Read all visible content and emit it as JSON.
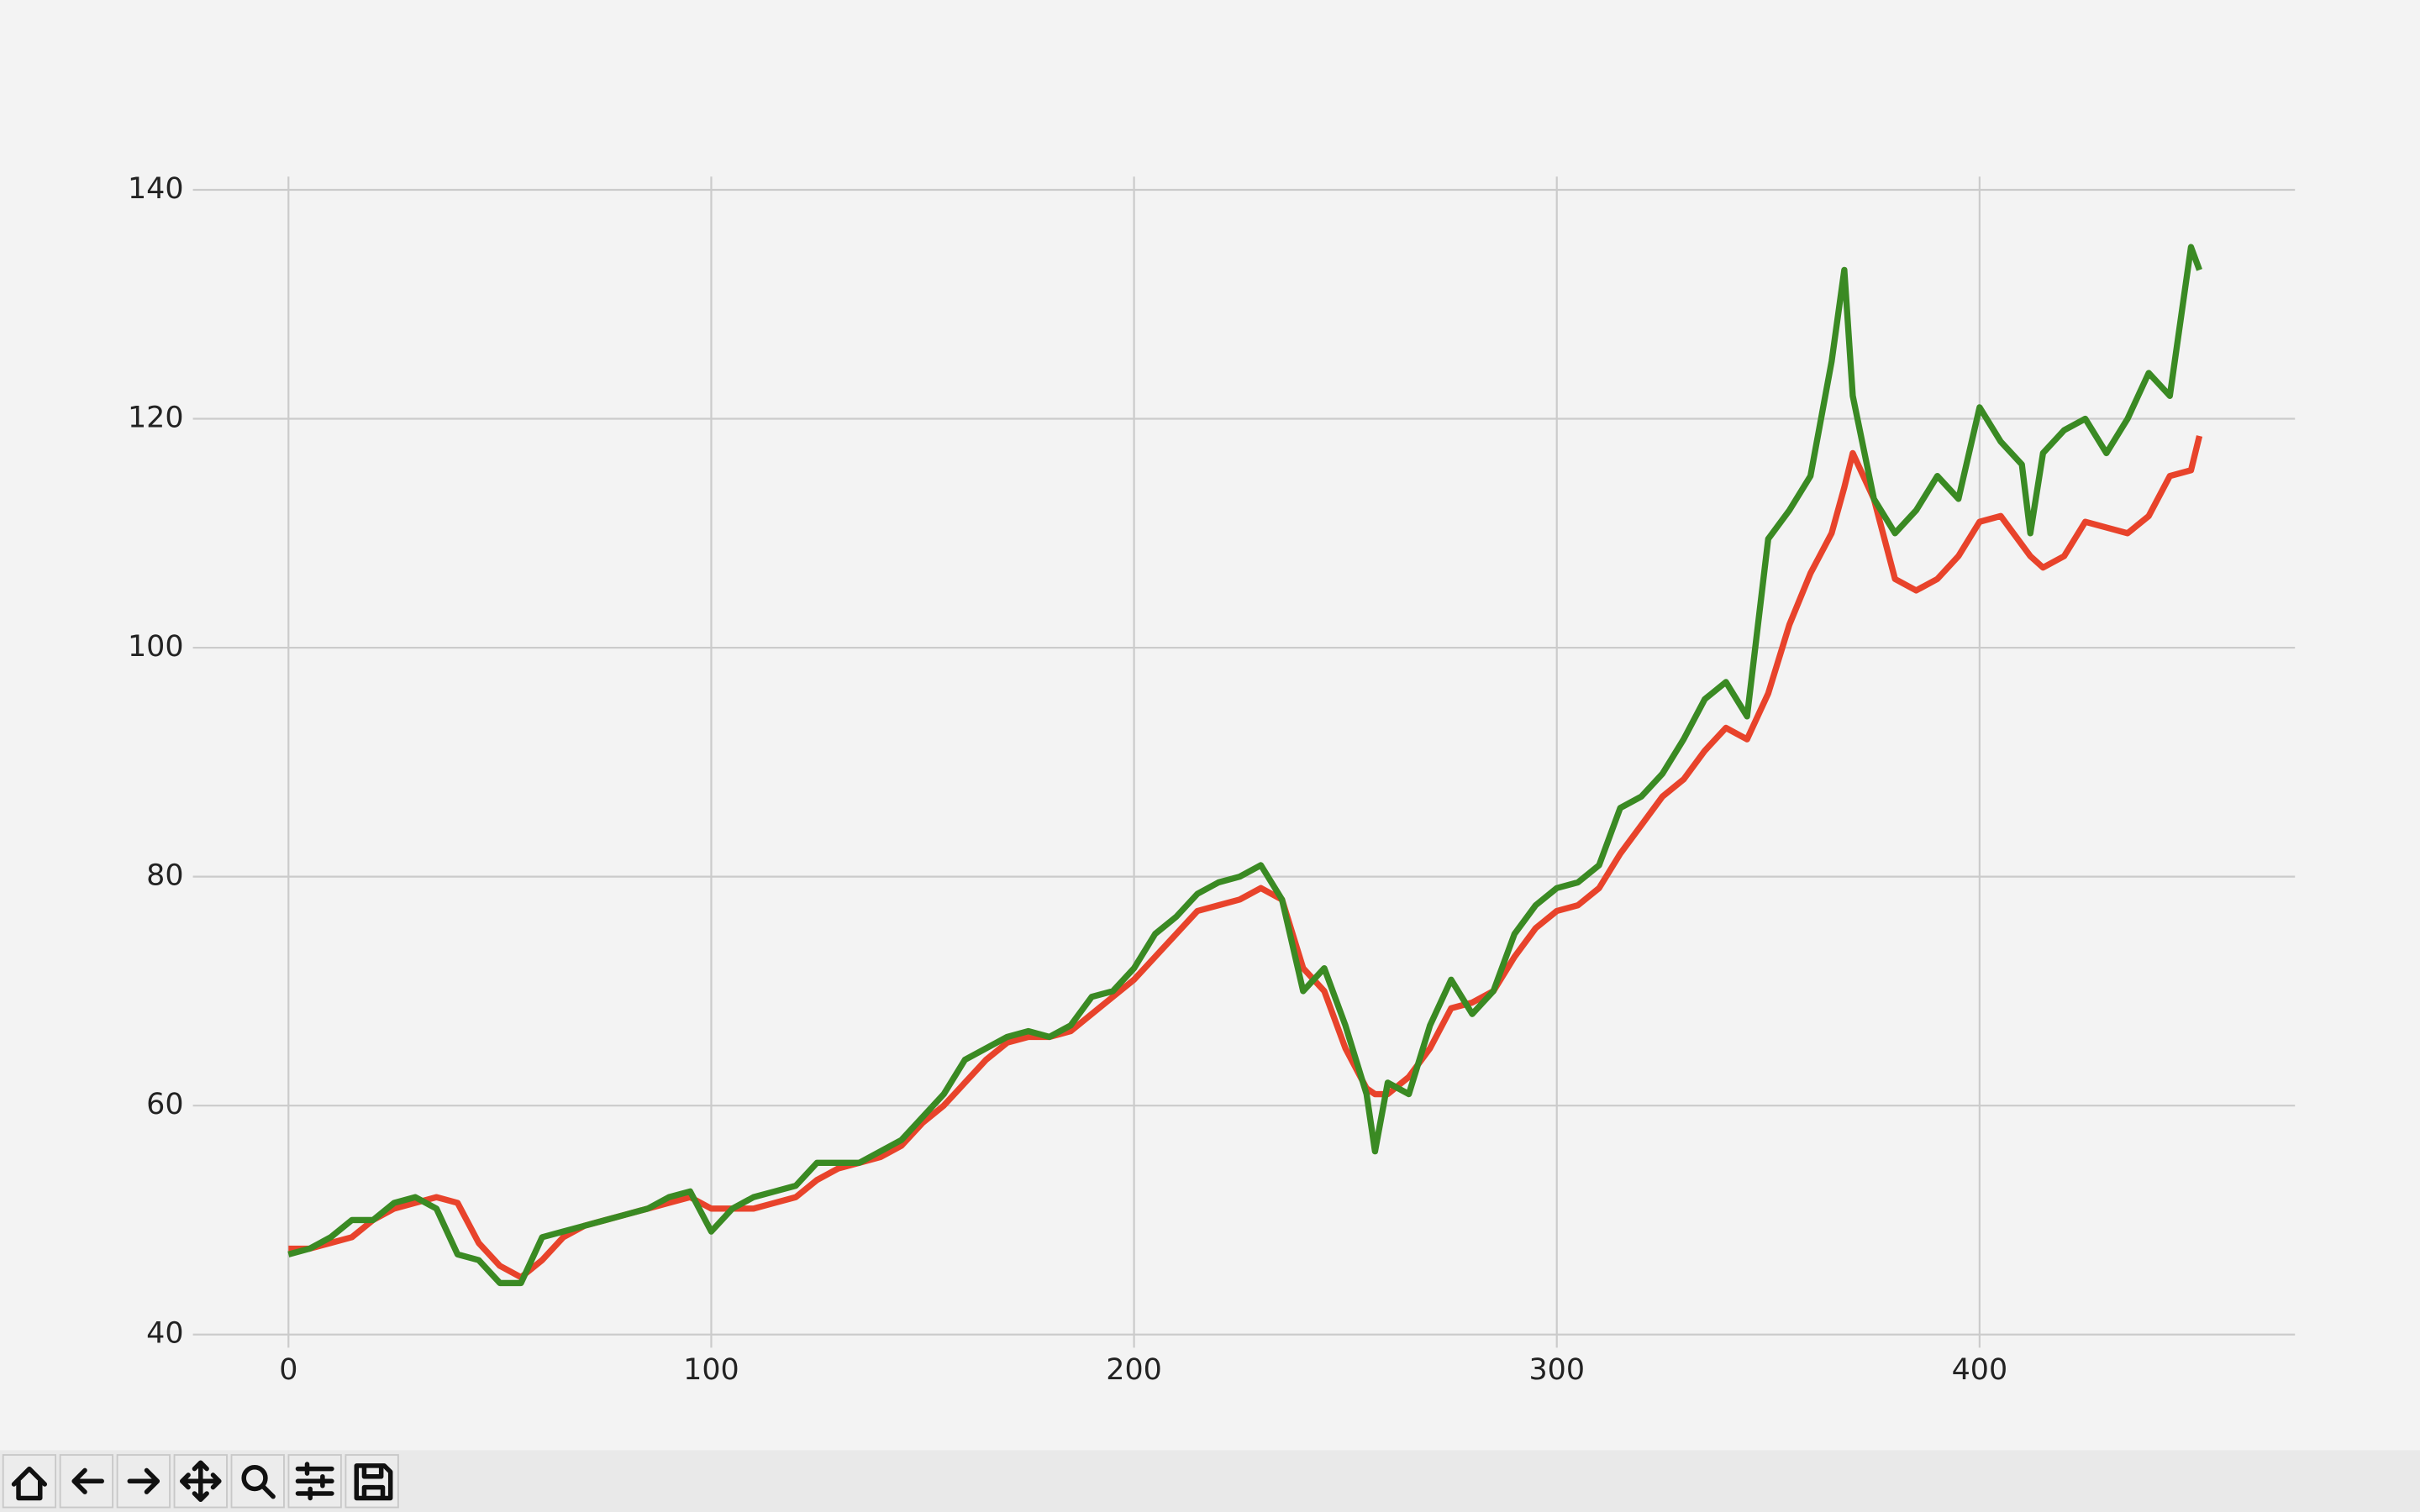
{
  "chart_data": {
    "type": "line",
    "x": [
      0,
      5,
      10,
      15,
      20,
      25,
      30,
      35,
      40,
      45,
      50,
      55,
      60,
      65,
      70,
      75,
      80,
      85,
      90,
      95,
      100,
      105,
      110,
      115,
      120,
      125,
      130,
      135,
      140,
      145,
      150,
      155,
      160,
      165,
      170,
      175,
      180,
      185,
      190,
      195,
      200,
      205,
      210,
      215,
      220,
      225,
      230,
      235,
      240,
      245,
      250,
      255,
      257,
      260,
      265,
      270,
      275,
      280,
      285,
      290,
      295,
      300,
      305,
      310,
      315,
      320,
      325,
      330,
      335,
      340,
      345,
      350,
      355,
      360,
      365,
      368,
      370,
      375,
      380,
      385,
      390,
      395,
      400,
      405,
      410,
      412,
      415,
      420,
      425,
      430,
      435,
      440,
      445,
      450,
      452
    ],
    "series": [
      {
        "color": "#e8432b",
        "values": [
          47.5,
          47.5,
          48,
          48.5,
          50,
          51,
          51.5,
          52,
          51.5,
          48,
          46,
          45,
          46.5,
          48.5,
          49.5,
          50,
          50.5,
          51,
          51.5,
          52,
          51,
          51,
          51,
          51.5,
          52,
          53.5,
          54.5,
          55,
          55.5,
          56.5,
          58.5,
          60,
          62,
          64,
          65.5,
          66,
          66,
          66.5,
          68,
          69.5,
          71,
          73,
          75,
          77,
          77.5,
          78,
          79,
          78,
          72,
          70,
          65,
          61.5,
          61,
          61,
          62.5,
          65,
          68.5,
          69,
          70,
          73,
          75.5,
          77,
          77.5,
          79,
          82,
          84.5,
          87,
          88.5,
          91,
          93,
          92,
          96,
          102,
          106.5,
          110,
          114,
          117,
          113,
          106,
          105,
          106,
          108,
          111,
          111.5,
          109,
          108,
          107,
          108,
          111,
          110.5,
          110,
          111.5,
          115,
          115.5,
          118.5
        ]
      },
      {
        "color": "#3a8a23",
        "values": [
          47,
          47.5,
          48.5,
          50,
          50,
          51.5,
          52,
          51,
          47,
          46.5,
          44.5,
          44.5,
          48.5,
          49,
          49.5,
          50,
          50.5,
          51,
          52,
          52.5,
          49,
          51,
          52,
          52.5,
          53,
          55,
          55,
          55,
          56,
          57,
          59,
          61,
          64,
          65,
          66,
          66.5,
          66,
          67,
          69.5,
          70,
          72,
          75,
          76.5,
          78.5,
          79.5,
          80,
          81,
          78,
          70,
          72,
          67,
          61,
          56,
          62,
          61,
          67,
          71,
          68,
          70,
          75,
          77.5,
          79,
          79.5,
          81,
          86,
          87,
          89,
          92,
          95.5,
          97,
          94,
          109.5,
          112,
          115,
          125,
          133,
          122,
          113,
          110,
          112,
          115,
          113,
          121,
          118,
          116,
          110,
          117,
          119,
          120,
          117,
          120,
          124,
          122,
          135,
          133
        ]
      }
    ],
    "xlim": [
      -22.6,
      474.6
    ],
    "ylim": [
      38.85,
      141.15
    ],
    "xticks": [
      0,
      100,
      200,
      300,
      400
    ],
    "yticks": [
      40,
      60,
      80,
      100,
      120,
      140
    ],
    "grid": true
  }
}
